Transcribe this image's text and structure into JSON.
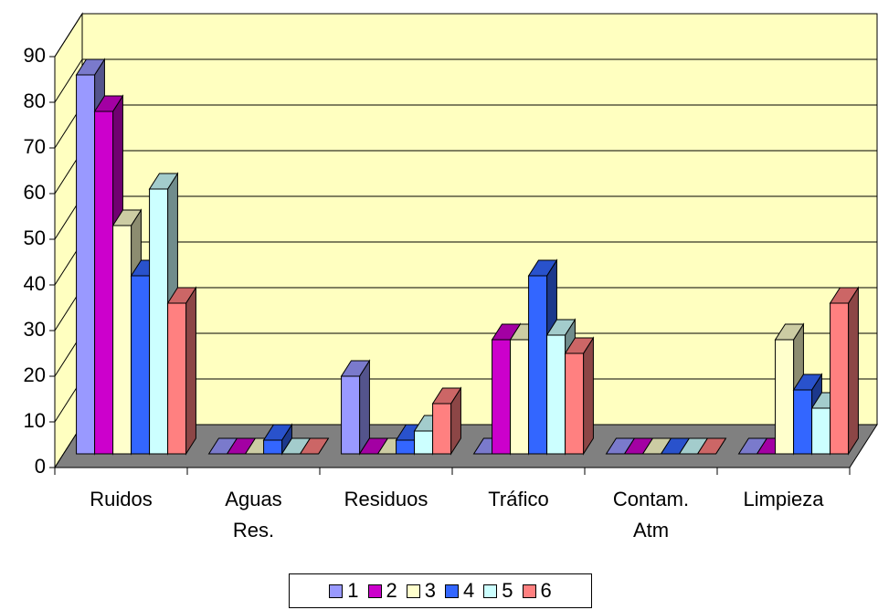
{
  "chart_data": {
    "type": "bar3d",
    "categories": [
      "Ruidos",
      "Aguas Res.",
      "Residuos",
      "Tráfico",
      "Contam. Atm",
      "Limpieza"
    ],
    "series": [
      {
        "name": "1",
        "color": "#9999ff",
        "values": [
          83,
          0,
          17,
          0,
          0,
          0
        ]
      },
      {
        "name": "2",
        "color": "#cc00cc",
        "values": [
          75,
          0,
          0,
          25,
          0,
          0
        ]
      },
      {
        "name": "3",
        "color": "#ffffcc",
        "values": [
          50,
          0,
          0,
          25,
          0,
          25
        ]
      },
      {
        "name": "4",
        "color": "#3366ff",
        "values": [
          39,
          3,
          3,
          39,
          0,
          14
        ]
      },
      {
        "name": "5",
        "color": "#ccffff",
        "values": [
          58,
          0,
          5,
          26,
          0,
          10
        ]
      },
      {
        "name": "6",
        "color": "#ff8080",
        "values": [
          33,
          0,
          11,
          22,
          0,
          33
        ]
      }
    ],
    "ylim": [
      0,
      90
    ],
    "yticks": [
      0,
      10,
      20,
      30,
      40,
      50,
      60,
      70,
      80,
      90
    ],
    "grid": true,
    "legend": "bottom"
  }
}
